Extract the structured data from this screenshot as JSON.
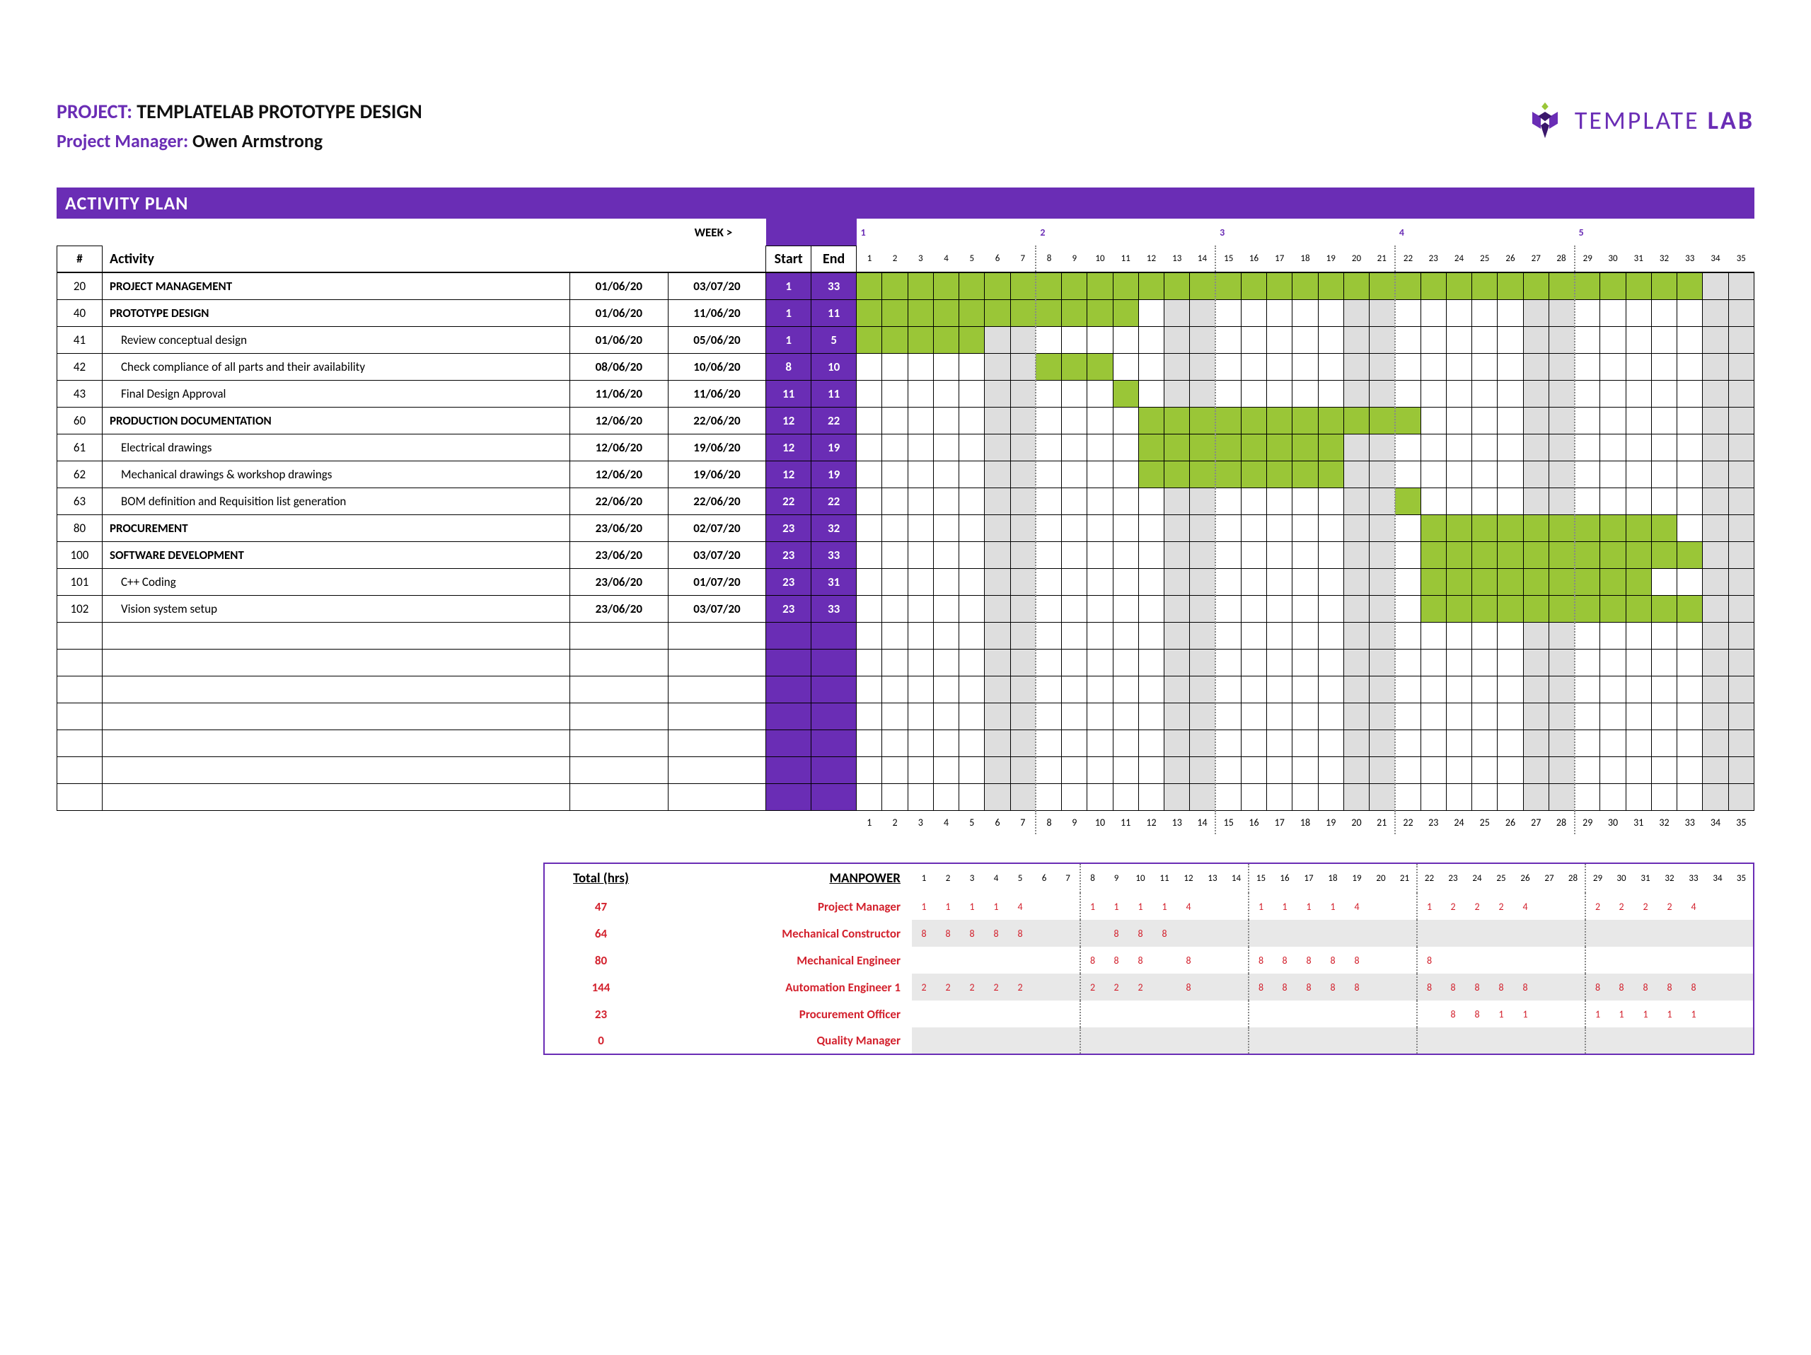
{
  "header": {
    "project_label": "PROJECT:",
    "project_name": "TEMPLATELAB PROTOTYPE DESIGN",
    "pm_label": "Project Manager:",
    "pm_name": "Owen Armstrong"
  },
  "logo": {
    "text1": "TEMPLATE ",
    "text2": "LAB"
  },
  "section_title": "ACTIVITY PLAN",
  "columns": {
    "num": "#",
    "activity": "Activity",
    "start": "Start",
    "end": "End",
    "week_label": "WEEK >"
  },
  "days": 35,
  "week_headers": [
    {
      "day": 1,
      "label": "1"
    },
    {
      "day": 8,
      "label": "2"
    },
    {
      "day": 15,
      "label": "3"
    },
    {
      "day": 22,
      "label": "4"
    },
    {
      "day": 29,
      "label": "5"
    }
  ],
  "shaded_days": [
    6,
    7,
    13,
    14,
    20,
    21,
    27,
    28,
    34,
    35
  ],
  "week_divider_days": [
    8,
    15,
    22,
    29
  ],
  "rows": [
    {
      "num": "20",
      "activity": "PROJECT MANAGEMENT",
      "sub": false,
      "d1": "01/06/20",
      "d2": "03/07/20",
      "start": "1",
      "end": "33",
      "bar": [
        1,
        33
      ]
    },
    {
      "num": "40",
      "activity": "PROTOTYPE DESIGN",
      "sub": false,
      "d1": "01/06/20",
      "d2": "11/06/20",
      "start": "1",
      "end": "11",
      "bar": [
        1,
        11
      ]
    },
    {
      "num": "41",
      "activity": "Review conceptual design",
      "sub": true,
      "d1": "01/06/20",
      "d2": "05/06/20",
      "start": "1",
      "end": "5",
      "bar": [
        1,
        5
      ]
    },
    {
      "num": "42",
      "activity": "Check compliance of all parts and their availability",
      "sub": true,
      "d1": "08/06/20",
      "d2": "10/06/20",
      "start": "8",
      "end": "10",
      "bar": [
        8,
        10
      ]
    },
    {
      "num": "43",
      "activity": "Final Design Approval",
      "sub": true,
      "d1": "11/06/20",
      "d2": "11/06/20",
      "start": "11",
      "end": "11",
      "bar": [
        11,
        11
      ]
    },
    {
      "num": "60",
      "activity": "PRODUCTION DOCUMENTATION",
      "sub": false,
      "d1": "12/06/20",
      "d2": "22/06/20",
      "start": "12",
      "end": "22",
      "bar": [
        12,
        22
      ]
    },
    {
      "num": "61",
      "activity": "Electrical drawings",
      "sub": true,
      "d1": "12/06/20",
      "d2": "19/06/20",
      "start": "12",
      "end": "19",
      "bar": [
        12,
        19
      ]
    },
    {
      "num": "62",
      "activity": "Mechanical drawings & workshop drawings",
      "sub": true,
      "d1": "12/06/20",
      "d2": "19/06/20",
      "start": "12",
      "end": "19",
      "bar": [
        12,
        19
      ]
    },
    {
      "num": "63",
      "activity": "BOM definition and Requisition list generation",
      "sub": true,
      "d1": "22/06/20",
      "d2": "22/06/20",
      "start": "22",
      "end": "22",
      "bar": [
        22,
        22
      ]
    },
    {
      "num": "80",
      "activity": "PROCUREMENT",
      "sub": false,
      "d1": "23/06/20",
      "d2": "02/07/20",
      "start": "23",
      "end": "32",
      "bar": [
        23,
        32
      ]
    },
    {
      "num": "100",
      "activity": "SOFTWARE DEVELOPMENT",
      "sub": false,
      "d1": "23/06/20",
      "d2": "03/07/20",
      "start": "23",
      "end": "33",
      "bar": [
        23,
        33
      ]
    },
    {
      "num": "101",
      "activity": "C++ Coding",
      "sub": true,
      "d1": "23/06/20",
      "d2": "01/07/20",
      "start": "23",
      "end": "31",
      "bar": [
        23,
        31
      ]
    },
    {
      "num": "102",
      "activity": "Vision system setup",
      "sub": true,
      "d1": "23/06/20",
      "d2": "03/07/20",
      "start": "23",
      "end": "33",
      "bar": [
        23,
        33
      ]
    }
  ],
  "empty_rows": 7,
  "manpower": {
    "headers": {
      "total": "Total (hrs)",
      "role": "MANPOWER"
    },
    "rows": [
      {
        "total": "47",
        "role": "Project Manager",
        "vals": {
          "1": "1",
          "2": "1",
          "3": "1",
          "4": "1",
          "5": "4",
          "8": "1",
          "9": "1",
          "10": "1",
          "11": "1",
          "12": "4",
          "15": "1",
          "16": "1",
          "17": "1",
          "18": "1",
          "19": "4",
          "22": "1",
          "23": "2",
          "24": "2",
          "25": "2",
          "26": "4",
          "29": "2",
          "30": "2",
          "31": "2",
          "32": "2",
          "33": "4"
        }
      },
      {
        "total": "64",
        "role": "Mechanical Constructor",
        "vals": {
          "1": "8",
          "2": "8",
          "3": "8",
          "4": "8",
          "5": "8",
          "9": "8",
          "10": "8",
          "11": "8"
        }
      },
      {
        "total": "80",
        "role": "Mechanical Engineer",
        "vals": {
          "8": "8",
          "9": "8",
          "10": "8",
          "12": "8",
          "15": "8",
          "16": "8",
          "17": "8",
          "18": "8",
          "19": "8",
          "22": "8"
        }
      },
      {
        "total": "144",
        "role": "Automation Engineer 1",
        "vals": {
          "1": "2",
          "2": "2",
          "3": "2",
          "4": "2",
          "5": "2",
          "8": "2",
          "9": "2",
          "10": "2",
          "12": "8",
          "15": "8",
          "16": "8",
          "17": "8",
          "18": "8",
          "19": "8",
          "22": "8",
          "23": "8",
          "24": "8",
          "25": "8",
          "26": "8",
          "29": "8",
          "30": "8",
          "31": "8",
          "32": "8",
          "33": "8"
        }
      },
      {
        "total": "23",
        "role": "Procurement Officer",
        "vals": {
          "23": "8",
          "24": "8",
          "25": "1",
          "26": "1",
          "29": "1",
          "30": "1",
          "31": "1",
          "32": "1",
          "33": "1"
        }
      },
      {
        "total": "0",
        "role": "Quality Manager",
        "vals": {}
      }
    ]
  },
  "colors": {
    "purple": "#6a2db5",
    "green": "#9ac637",
    "shade": "#dedede",
    "red": "#d3212d"
  }
}
